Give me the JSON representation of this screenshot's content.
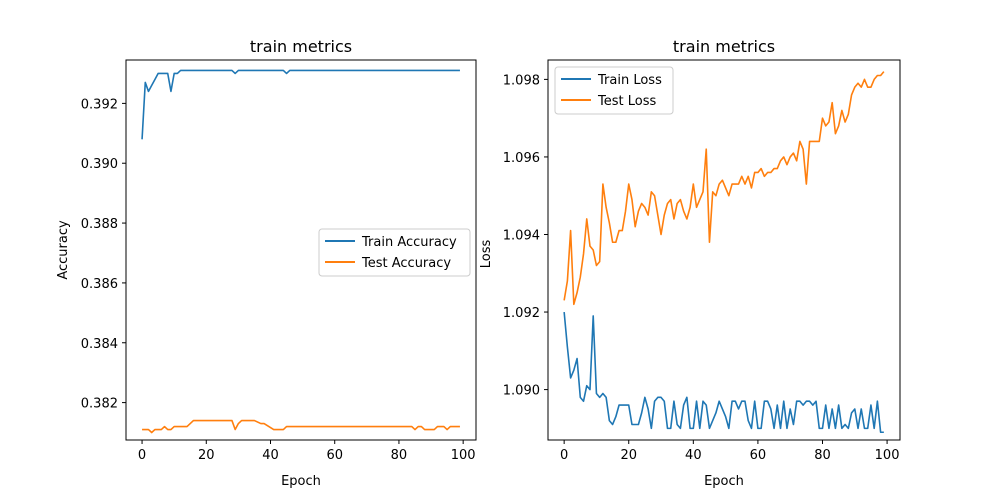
{
  "chart_data": [
    {
      "type": "line",
      "title": "train metrics",
      "xlabel": "Epoch",
      "ylabel": "Accuracy",
      "xlim": [
        -5,
        104
      ],
      "ylim": [
        0.38075,
        0.39345
      ],
      "xticks": [
        0,
        20,
        40,
        60,
        80,
        100
      ],
      "yticks": [
        0.382,
        0.384,
        0.386,
        0.388,
        0.39,
        0.392
      ],
      "ytick_labels": [
        "0.382",
        "0.384",
        "0.386",
        "0.388",
        "0.390",
        "0.392"
      ],
      "legend_position": "center-right",
      "series": [
        {
          "name": "Train Accuracy",
          "color": "#1f77b4",
          "x": [
            0,
            1,
            2,
            3,
            4,
            5,
            6,
            7,
            8,
            9,
            10,
            11,
            12,
            13,
            14,
            15,
            20,
            25,
            28,
            29,
            30,
            31,
            35,
            40,
            44,
            45,
            46,
            47,
            50,
            60,
            70,
            80,
            90,
            99
          ],
          "values": [
            0.3908,
            0.3927,
            0.3924,
            0.3926,
            0.3928,
            0.393,
            0.393,
            0.393,
            0.393,
            0.3924,
            0.393,
            0.393,
            0.3931,
            0.3931,
            0.3931,
            0.3931,
            0.3931,
            0.3931,
            0.3931,
            0.393,
            0.3931,
            0.3931,
            0.3931,
            0.3931,
            0.3931,
            0.393,
            0.3931,
            0.3931,
            0.3931,
            0.3931,
            0.3931,
            0.3931,
            0.3931,
            0.3931
          ]
        },
        {
          "name": "Test Accuracy",
          "color": "#ff7f0e",
          "x": [
            0,
            1,
            2,
            3,
            4,
            5,
            6,
            7,
            8,
            9,
            10,
            11,
            14,
            15,
            16,
            20,
            25,
            28,
            29,
            30,
            31,
            35,
            37,
            38,
            41,
            42,
            43,
            44,
            45,
            46,
            50,
            60,
            70,
            80,
            84,
            85,
            86,
            87,
            88,
            89,
            90,
            91,
            92,
            93,
            94,
            95,
            96,
            97,
            98,
            99
          ],
          "values": [
            0.3811,
            0.3811,
            0.3811,
            0.381,
            0.3811,
            0.3811,
            0.3811,
            0.3812,
            0.3811,
            0.3811,
            0.3812,
            0.3812,
            0.3812,
            0.3813,
            0.3814,
            0.3814,
            0.3814,
            0.3814,
            0.3811,
            0.3813,
            0.3814,
            0.3814,
            0.3813,
            0.3813,
            0.3811,
            0.3811,
            0.3811,
            0.3811,
            0.3812,
            0.3812,
            0.3812,
            0.3812,
            0.3812,
            0.3812,
            0.3812,
            0.3811,
            0.3812,
            0.3812,
            0.3811,
            0.3811,
            0.3811,
            0.3811,
            0.3812,
            0.3812,
            0.3812,
            0.3811,
            0.3812,
            0.3812,
            0.3812,
            0.3812
          ]
        }
      ]
    },
    {
      "type": "line",
      "title": "train metrics",
      "xlabel": "Epoch",
      "ylabel": "Loss",
      "xlim": [
        -5,
        104
      ],
      "ylim": [
        1.0887,
        1.0985
      ],
      "xticks": [
        0,
        20,
        40,
        60,
        80,
        100
      ],
      "yticks": [
        1.09,
        1.092,
        1.094,
        1.096,
        1.098
      ],
      "ytick_labels": [
        "1.090",
        "1.092",
        "1.094",
        "1.096",
        "1.098"
      ],
      "legend_position": "top-left",
      "series": [
        {
          "name": "Train Loss",
          "color": "#1f77b4",
          "x": [
            0,
            1,
            2,
            3,
            4,
            5,
            6,
            7,
            8,
            9,
            10,
            11,
            12,
            13,
            14,
            15,
            16,
            17,
            18,
            19,
            20,
            21,
            22,
            23,
            24,
            25,
            26,
            27,
            28,
            29,
            30,
            31,
            32,
            33,
            34,
            35,
            36,
            37,
            38,
            39,
            40,
            41,
            42,
            43,
            44,
            45,
            46,
            47,
            48,
            49,
            50,
            51,
            52,
            53,
            54,
            55,
            56,
            57,
            58,
            59,
            60,
            61,
            62,
            63,
            64,
            65,
            66,
            67,
            68,
            69,
            70,
            71,
            72,
            73,
            74,
            75,
            76,
            77,
            78,
            79,
            80,
            81,
            82,
            83,
            84,
            85,
            86,
            87,
            88,
            89,
            90,
            91,
            92,
            93,
            94,
            95,
            96,
            97,
            98,
            99
          ],
          "values": [
            1.092,
            1.0911,
            1.0903,
            1.0905,
            1.0908,
            1.0898,
            1.0897,
            1.0901,
            1.09,
            1.0919,
            1.0899,
            1.0898,
            1.0899,
            1.0898,
            1.0892,
            1.0891,
            1.0893,
            1.0896,
            1.0896,
            1.0896,
            1.0896,
            1.0891,
            1.0891,
            1.0891,
            1.0894,
            1.0898,
            1.0895,
            1.089,
            1.0897,
            1.0898,
            1.0898,
            1.0897,
            1.089,
            1.089,
            1.0897,
            1.0891,
            1.089,
            1.0896,
            1.0898,
            1.089,
            1.089,
            1.0897,
            1.089,
            1.0897,
            1.0896,
            1.089,
            1.0892,
            1.0894,
            1.0897,
            1.0895,
            1.0893,
            1.089,
            1.0897,
            1.0897,
            1.0895,
            1.0897,
            1.0897,
            1.0892,
            1.089,
            1.0897,
            1.089,
            1.089,
            1.0897,
            1.0897,
            1.0895,
            1.089,
            1.0896,
            1.089,
            1.0897,
            1.089,
            1.0895,
            1.0891,
            1.0897,
            1.0897,
            1.0896,
            1.0897,
            1.0897,
            1.0896,
            1.0897,
            1.089,
            1.089,
            1.0896,
            1.089,
            1.0895,
            1.089,
            1.0896,
            1.089,
            1.0891,
            1.089,
            1.0894,
            1.0895,
            1.089,
            1.0895,
            1.089,
            1.089,
            1.0896,
            1.089,
            1.0897,
            1.0889,
            1.0889
          ]
        },
        {
          "name": "Test Loss",
          "color": "#ff7f0e",
          "x": [
            0,
            1,
            2,
            3,
            4,
            5,
            6,
            7,
            8,
            9,
            10,
            11,
            12,
            13,
            14,
            15,
            16,
            17,
            18,
            19,
            20,
            21,
            22,
            23,
            24,
            25,
            26,
            27,
            28,
            29,
            30,
            31,
            32,
            33,
            34,
            35,
            36,
            37,
            38,
            39,
            40,
            41,
            42,
            43,
            44,
            45,
            46,
            47,
            48,
            49,
            50,
            51,
            52,
            53,
            54,
            55,
            56,
            57,
            58,
            59,
            60,
            61,
            62,
            63,
            64,
            65,
            66,
            67,
            68,
            69,
            70,
            71,
            72,
            73,
            74,
            75,
            76,
            77,
            78,
            79,
            80,
            81,
            82,
            83,
            84,
            85,
            86,
            87,
            88,
            89,
            90,
            91,
            92,
            93,
            94,
            95,
            96,
            97,
            98,
            99
          ],
          "values": [
            1.0923,
            1.0928,
            1.0941,
            1.0922,
            1.0925,
            1.0929,
            1.0935,
            1.0944,
            1.0937,
            1.0936,
            1.0932,
            1.0933,
            1.0953,
            1.0947,
            1.0943,
            1.0938,
            1.0938,
            1.0941,
            1.0941,
            1.0946,
            1.0953,
            1.0949,
            1.0942,
            1.0946,
            1.0948,
            1.0947,
            1.0945,
            1.0951,
            1.095,
            1.0945,
            1.094,
            1.0945,
            1.0948,
            1.0949,
            1.0944,
            1.0948,
            1.0949,
            1.0946,
            1.0944,
            1.0947,
            1.0953,
            1.0947,
            1.0949,
            1.0951,
            1.0962,
            1.0938,
            1.0951,
            1.095,
            1.0953,
            1.0954,
            1.0952,
            1.095,
            1.0953,
            1.0953,
            1.0953,
            1.0955,
            1.0953,
            1.0955,
            1.0952,
            1.0956,
            1.0956,
            1.0957,
            1.0955,
            1.0956,
            1.0956,
            1.0957,
            1.0957,
            1.0959,
            1.096,
            1.0958,
            1.096,
            1.0961,
            1.0959,
            1.0964,
            1.0962,
            1.0953,
            1.0964,
            1.0964,
            1.0964,
            1.0964,
            1.097,
            1.0968,
            1.0969,
            1.0974,
            1.0966,
            1.0968,
            1.0972,
            1.0969,
            1.0971,
            1.0976,
            1.0978,
            1.0979,
            1.0978,
            1.098,
            1.0978,
            1.0978,
            1.098,
            1.0981,
            1.0981,
            1.0982
          ]
        }
      ]
    }
  ]
}
